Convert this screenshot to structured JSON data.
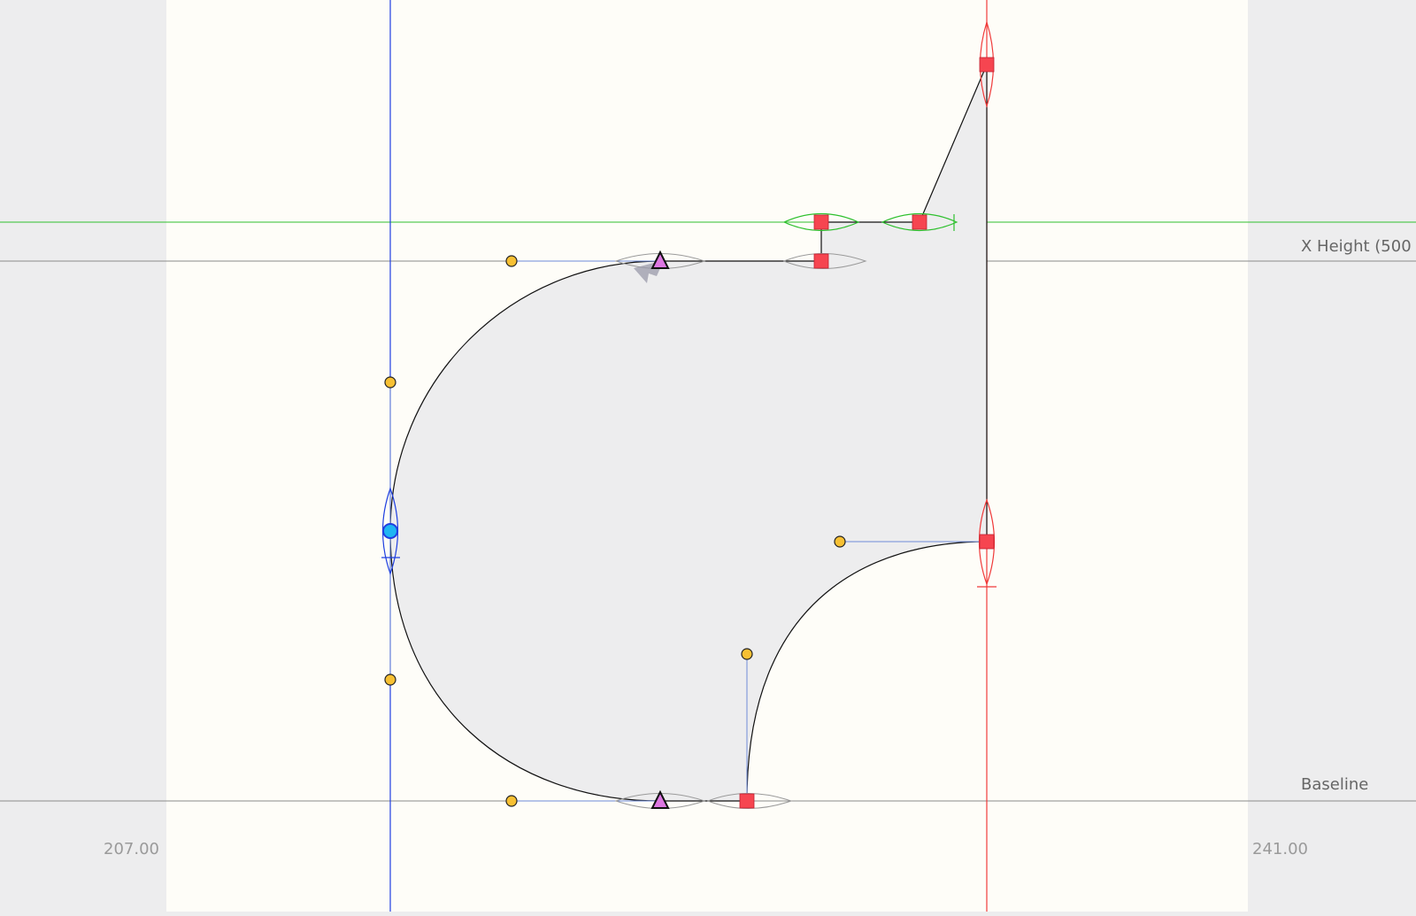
{
  "editor": {
    "guidelines": {
      "x_height_label": "X Height (500",
      "baseline_label": "Baseline"
    },
    "sidebearings": {
      "left_value": "207.00",
      "right_value": "241.00"
    },
    "colors": {
      "canvas_margin": "#ededee",
      "glyph_bounds": "#fefdf8",
      "glyph_fill": "#ededee",
      "outline": "#111111",
      "metric_line": "#8a8a8a",
      "green_guide": "#2ec02e",
      "blue_guide": "#1f3fe0",
      "red_guide": "#f03a3a",
      "corner_node": "#f64550",
      "handle": "#f7c033",
      "smooth_node": "#1fb5f2",
      "tangent_node": "#dd77e2"
    }
  }
}
